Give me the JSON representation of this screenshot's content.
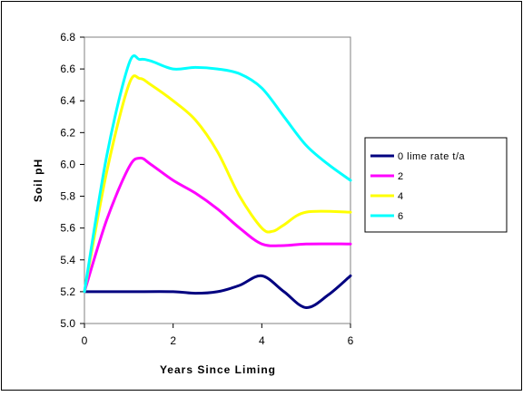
{
  "chart_data": {
    "type": "line",
    "title": "",
    "xlabel": "Years Since Liming",
    "ylabel": "Soil pH",
    "xlim": [
      0,
      6
    ],
    "ylim": [
      5.0,
      6.8
    ],
    "x_ticks": [
      "0",
      "2",
      "4",
      "6"
    ],
    "y_ticks": [
      "5.0",
      "5.2",
      "5.4",
      "5.6",
      "5.8",
      "6.0",
      "6.2",
      "6.4",
      "6.6",
      "6.8"
    ],
    "grid": false,
    "legend_position": "right",
    "series": [
      {
        "name": "0 lime rate t/a",
        "color": "#000080",
        "points": [
          [
            0,
            5.2
          ],
          [
            1,
            5.2
          ],
          [
            2,
            5.2
          ],
          [
            2.5,
            5.19
          ],
          [
            3,
            5.2
          ],
          [
            3.5,
            5.24
          ],
          [
            4,
            5.3
          ],
          [
            4.5,
            5.2
          ],
          [
            5,
            5.1
          ],
          [
            5.5,
            5.18
          ],
          [
            6,
            5.3
          ]
        ]
      },
      {
        "name": "2",
        "color": "#ff00ff",
        "points": [
          [
            0,
            5.2
          ],
          [
            0.5,
            5.65
          ],
          [
            1,
            5.98
          ],
          [
            1.25,
            6.04
          ],
          [
            1.5,
            6.0
          ],
          [
            2,
            5.9
          ],
          [
            2.5,
            5.82
          ],
          [
            3,
            5.72
          ],
          [
            3.5,
            5.6
          ],
          [
            4,
            5.5
          ],
          [
            4.5,
            5.49
          ],
          [
            5,
            5.5
          ],
          [
            6,
            5.5
          ]
        ]
      },
      {
        "name": "4",
        "color": "#ffff00",
        "points": [
          [
            0,
            5.2
          ],
          [
            0.5,
            5.95
          ],
          [
            1,
            6.5
          ],
          [
            1.25,
            6.54
          ],
          [
            1.5,
            6.5
          ],
          [
            2,
            6.4
          ],
          [
            2.5,
            6.28
          ],
          [
            3,
            6.08
          ],
          [
            3.5,
            5.8
          ],
          [
            4,
            5.6
          ],
          [
            4.25,
            5.58
          ],
          [
            4.5,
            5.62
          ],
          [
            5,
            5.7
          ],
          [
            6,
            5.7
          ]
        ]
      },
      {
        "name": "6",
        "color": "#00ffff",
        "points": [
          [
            0,
            5.2
          ],
          [
            0.5,
            6.05
          ],
          [
            1,
            6.63
          ],
          [
            1.25,
            6.66
          ],
          [
            1.5,
            6.65
          ],
          [
            2,
            6.6
          ],
          [
            2.5,
            6.61
          ],
          [
            3,
            6.6
          ],
          [
            3.5,
            6.57
          ],
          [
            4,
            6.48
          ],
          [
            4.5,
            6.3
          ],
          [
            5,
            6.12
          ],
          [
            5.5,
            6.0
          ],
          [
            6,
            5.9
          ]
        ]
      }
    ]
  }
}
